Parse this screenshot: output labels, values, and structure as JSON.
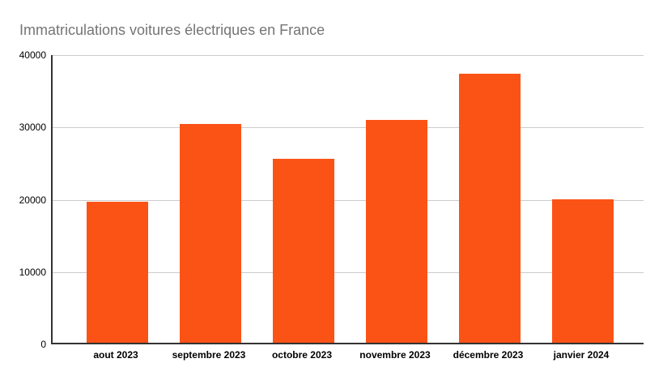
{
  "chart_data": {
    "type": "bar",
    "title": "Immatriculations voitures électriques en France",
    "categories": [
      "aout 2023",
      "septembre 2023",
      "octobre 2023",
      "novembre 2023",
      "décembre 2023",
      "janvier 2024"
    ],
    "values": [
      19500,
      30200,
      25400,
      30800,
      37200,
      19800
    ],
    "xlabel": "",
    "ylabel": "",
    "ylim": [
      0,
      40000
    ],
    "yticks": [
      0,
      10000,
      20000,
      30000,
      40000
    ],
    "grid": true,
    "legend": "none",
    "bar_color": "#fb5316",
    "title_color": "#757575",
    "axis_color": "#333333",
    "gridline_color": "#cccccc",
    "tick_label_color": "#000000",
    "background_color": "#ffffff"
  }
}
